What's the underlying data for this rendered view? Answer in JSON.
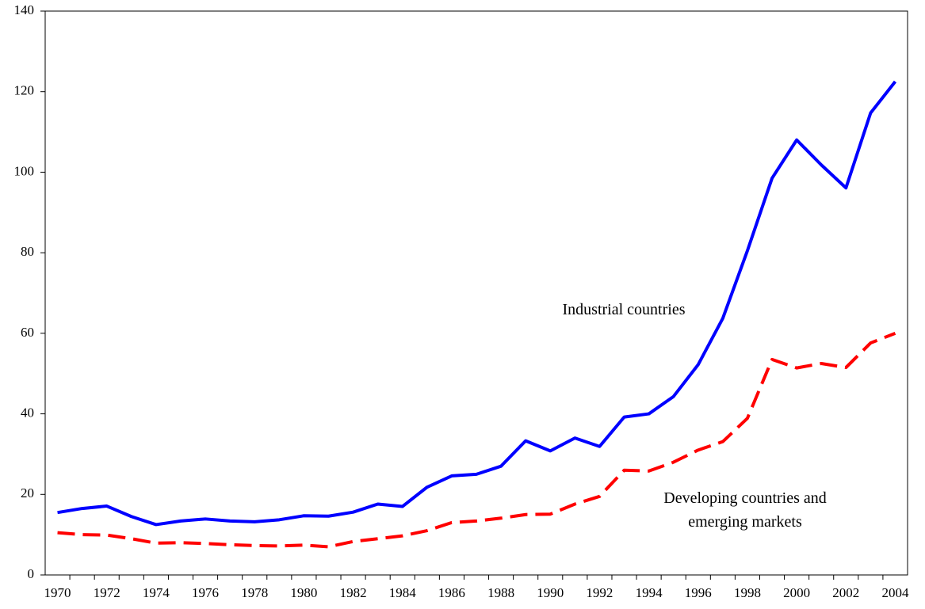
{
  "chart_data": {
    "type": "line",
    "categories": [
      "1970",
      null,
      "1972",
      null,
      "1974",
      null,
      "1976",
      null,
      "1978",
      null,
      "1980",
      null,
      "1982",
      null,
      "1984",
      null,
      "1986",
      null,
      "1988",
      null,
      "1990",
      null,
      "1992",
      null,
      "1994",
      null,
      "1996",
      null,
      "1998",
      null,
      "2000",
      null,
      "2002",
      null,
      "2004"
    ],
    "series": [
      {
        "name": "Industrial countries",
        "color": "#0000ff",
        "dash": false,
        "values": [
          15.5,
          16.5,
          17.1,
          14.5,
          12.5,
          13.4,
          13.9,
          13.4,
          13.2,
          13.7,
          14.7,
          14.6,
          15.6,
          17.6,
          17.0,
          21.8,
          24.6,
          25.0,
          27.0,
          33.3,
          30.8,
          34.0,
          31.9,
          39.2,
          40.0,
          44.3,
          52.2,
          63.7,
          80.5,
          98.5,
          108,
          101.8,
          96.1,
          114.7,
          122.5
        ]
      },
      {
        "name": "Developing countries and emerging markets",
        "color": "#ff0000",
        "dash": true,
        "values": [
          10.5,
          10.0,
          9.9,
          9.0,
          7.9,
          8.0,
          7.8,
          7.5,
          7.3,
          7.2,
          7.4,
          7.0,
          8.3,
          9.0,
          9.7,
          11.0,
          13.0,
          13.4,
          14.1,
          15.0,
          15.1,
          17.6,
          19.5,
          26.0,
          25.8,
          28.0,
          31.0,
          33.1,
          38.9,
          53.5,
          51.4,
          52.5,
          51.5,
          57.6,
          60.0
        ]
      }
    ],
    "ylim": [
      0,
      140
    ],
    "yticks": [
      0,
      20,
      40,
      60,
      80,
      100,
      120,
      140
    ],
    "grid": false
  }
}
